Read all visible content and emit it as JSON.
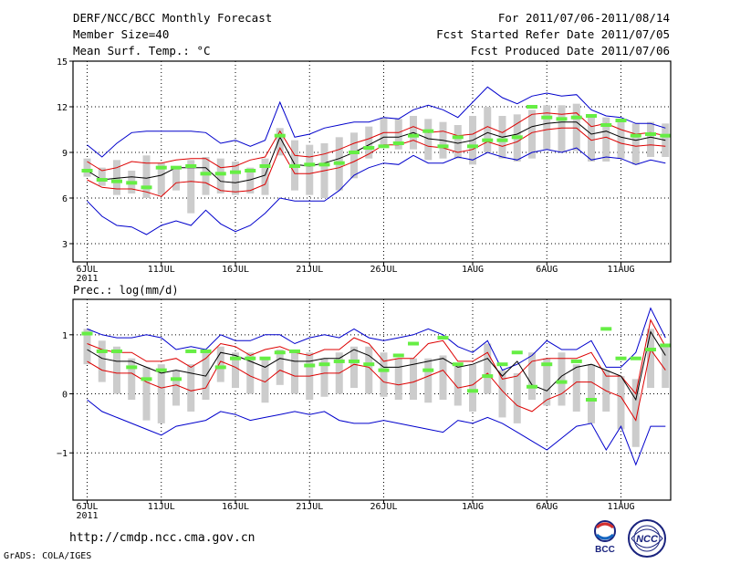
{
  "header": {
    "title": "DERF/NCC/BCC Monthly Forecast",
    "member_size": "Member Size=40",
    "variable": "Mean Surf. Temp.: °C",
    "period": "For 2011/07/06-2011/08/14",
    "fcst_started": "Fcst Started Refer Date 2011/07/05",
    "fcst_produced": "Fcst Produced Date 2011/07/06"
  },
  "footer": {
    "url": "http://cmdp.ncc.cma.gov.cn",
    "grads": "GrADS: COLA/IGES",
    "logo_bcc": "BCC",
    "logo_ncc": "NCC"
  },
  "colors": {
    "max_min": "#0000cc",
    "spread": "#dd0000",
    "mean": "#000000",
    "box": "#cccccc",
    "median": "#66ee44",
    "grid": "#000000"
  },
  "chart_data": [
    {
      "type": "line",
      "title": "",
      "ylabel": "Mean Surf. Temp.: °C",
      "x_labels": [
        "6JUL\n2011",
        "11JUL",
        "16JUL",
        "21JUL",
        "26JUL",
        "1AUG",
        "6AUG",
        "11AUG"
      ],
      "x_label_positions": [
        0,
        5,
        10,
        15,
        20,
        26,
        31,
        36
      ],
      "ylim": [
        1.8,
        15
      ],
      "yticks": [
        3,
        6,
        9,
        12,
        15
      ],
      "ytick_labels": [
        "3",
        "6",
        "9",
        "12",
        "15"
      ],
      "n_days": 40,
      "series": [
        {
          "name": "max",
          "values": [
            9.5,
            8.7,
            9.6,
            10.3,
            10.4,
            10.4,
            10.4,
            10.4,
            10.3,
            9.6,
            9.8,
            9.4,
            9.8,
            12.3,
            10.0,
            10.2,
            10.6,
            10.8,
            11.0,
            11.0,
            11.3,
            11.2,
            11.8,
            12.1,
            11.8,
            11.3,
            12.3,
            13.3,
            12.6,
            12.2,
            12.7,
            12.9,
            12.7,
            12.8,
            11.8,
            11.4,
            11.3,
            10.9,
            10.9,
            10.6
          ]
        },
        {
          "name": "upper",
          "values": [
            8.4,
            7.8,
            8.0,
            8.4,
            8.3,
            8.3,
            8.5,
            8.6,
            8.6,
            8.0,
            8.1,
            8.5,
            8.7,
            10.4,
            8.8,
            8.7,
            8.9,
            9.2,
            9.6,
            9.9,
            10.3,
            10.3,
            10.7,
            10.3,
            10.4,
            10.1,
            10.2,
            10.7,
            10.3,
            10.9,
            11.5,
            11.6,
            11.5,
            11.6,
            10.7,
            10.9,
            10.5,
            10.2,
            10.3,
            10.1
          ]
        },
        {
          "name": "mean",
          "values": [
            7.8,
            7.2,
            7.3,
            7.4,
            7.3,
            7.5,
            8.0,
            8.0,
            8.0,
            7.1,
            7.0,
            7.2,
            7.5,
            10.0,
            8.2,
            8.1,
            8.3,
            8.6,
            9.0,
            9.5,
            10.0,
            10.0,
            10.3,
            9.9,
            9.8,
            9.6,
            9.8,
            10.3,
            10.0,
            10.2,
            10.7,
            10.9,
            11.0,
            11.0,
            10.2,
            10.4,
            10.0,
            9.8,
            10.0,
            9.8
          ]
        },
        {
          "name": "lower",
          "values": [
            7.2,
            6.7,
            6.6,
            6.6,
            6.4,
            6.1,
            7.0,
            7.1,
            7.0,
            6.5,
            6.4,
            6.5,
            6.9,
            9.3,
            7.6,
            7.6,
            7.8,
            8.0,
            8.4,
            8.9,
            9.5,
            9.5,
            9.8,
            9.4,
            9.3,
            9.0,
            9.2,
            9.7,
            9.4,
            9.7,
            10.3,
            10.5,
            10.6,
            10.6,
            9.8,
            10.0,
            9.6,
            9.4,
            9.5,
            9.4
          ]
        },
        {
          "name": "min",
          "values": [
            5.8,
            4.8,
            4.2,
            4.1,
            3.6,
            4.2,
            4.5,
            4.2,
            5.2,
            4.3,
            3.8,
            4.2,
            5.0,
            6.0,
            5.8,
            5.8,
            5.8,
            6.5,
            7.5,
            8.0,
            8.3,
            8.2,
            8.8,
            8.3,
            8.3,
            8.7,
            8.5,
            9.0,
            8.7,
            8.5,
            9.0,
            9.2,
            9.0,
            9.3,
            8.5,
            8.7,
            8.6,
            8.2,
            8.5,
            8.3
          ]
        }
      ],
      "boxes": [
        [
          7.4,
          8.6
        ],
        [
          6.8,
          8.0
        ],
        [
          6.2,
          8.5
        ],
        [
          6.3,
          7.8
        ],
        [
          6.0,
          8.8
        ],
        [
          6.2,
          8.3
        ],
        [
          6.5,
          8.0
        ],
        [
          5.0,
          8.5
        ],
        [
          6.2,
          8.7
        ],
        [
          6.3,
          8.6
        ],
        [
          6.2,
          8.4
        ],
        [
          6.3,
          8.0
        ],
        [
          6.2,
          8.6
        ],
        [
          8.8,
          10.6
        ],
        [
          6.5,
          9.8
        ],
        [
          6.2,
          9.5
        ],
        [
          6.0,
          9.6
        ],
        [
          6.5,
          10.0
        ],
        [
          7.3,
          10.3
        ],
        [
          8.6,
          10.7
        ],
        [
          9.3,
          11.3
        ],
        [
          9.2,
          11.2
        ],
        [
          9.2,
          11.4
        ],
        [
          8.5,
          11.2
        ],
        [
          8.6,
          11.0
        ],
        [
          8.6,
          10.8
        ],
        [
          8.2,
          11.4
        ],
        [
          9.0,
          12.0
        ],
        [
          8.6,
          11.4
        ],
        [
          8.4,
          11.5
        ],
        [
          8.6,
          11.8
        ],
        [
          9.2,
          12.1
        ],
        [
          9.0,
          12.1
        ],
        [
          9.1,
          12.2
        ],
        [
          8.4,
          11.5
        ],
        [
          8.4,
          11.3
        ],
        [
          8.6,
          11.0
        ],
        [
          8.2,
          10.9
        ],
        [
          8.7,
          11.0
        ],
        [
          8.7,
          10.9
        ]
      ],
      "median": [
        7.8,
        7.2,
        7.1,
        7.0,
        6.7,
        8.0,
        8.0,
        8.1,
        7.6,
        7.6,
        7.7,
        7.8,
        8.1,
        10.1,
        8.1,
        8.2,
        8.2,
        8.3,
        9.0,
        9.3,
        9.4,
        9.6,
        10.1,
        10.4,
        9.4,
        10.0,
        9.4,
        9.8,
        9.8,
        10.0,
        12.0,
        11.3,
        11.2,
        11.3,
        11.4,
        10.8,
        11.1,
        10.1,
        10.2,
        10.1
      ]
    },
    {
      "type": "line",
      "title": "",
      "ylabel": "Prec.: log(mm/d)",
      "x_labels": [
        "6JUL\n2011",
        "11JUL",
        "16JUL",
        "21JUL",
        "26JUL",
        "1AUG",
        "6AUG",
        "11AUG"
      ],
      "x_label_positions": [
        0,
        5,
        10,
        15,
        20,
        26,
        31,
        36
      ],
      "ylim": [
        -1.8,
        1.6
      ],
      "yticks": [
        -1,
        0,
        1
      ],
      "ytick_labels": [
        "−1",
        "0",
        "1"
      ],
      "n_days": 40,
      "series": [
        {
          "name": "max",
          "values": [
            1.1,
            1.0,
            0.95,
            0.95,
            1.0,
            0.95,
            0.75,
            0.8,
            0.75,
            1.0,
            0.9,
            0.9,
            1.0,
            1.0,
            0.85,
            0.95,
            1.0,
            0.95,
            1.1,
            0.95,
            0.9,
            0.95,
            1.0,
            1.1,
            1.0,
            0.8,
            0.7,
            0.9,
            0.4,
            0.5,
            0.65,
            0.9,
            0.75,
            0.75,
            0.9,
            0.45,
            0.45,
            0.7,
            1.45,
            0.95
          ]
        },
        {
          "name": "upper",
          "values": [
            0.85,
            0.75,
            0.7,
            0.7,
            0.55,
            0.55,
            0.6,
            0.45,
            0.6,
            0.85,
            0.8,
            0.65,
            0.75,
            0.8,
            0.7,
            0.65,
            0.75,
            0.75,
            0.95,
            0.85,
            0.55,
            0.6,
            0.6,
            0.85,
            0.9,
            0.55,
            0.55,
            0.7,
            0.25,
            0.3,
            0.55,
            0.6,
            0.6,
            0.6,
            0.7,
            0.3,
            0.3,
            0.0,
            1.25,
            0.8
          ]
        },
        {
          "name": "mean",
          "values": [
            0.75,
            0.6,
            0.55,
            0.55,
            0.45,
            0.35,
            0.4,
            0.35,
            0.3,
            0.7,
            0.65,
            0.55,
            0.45,
            0.6,
            0.55,
            0.55,
            0.6,
            0.6,
            0.75,
            0.65,
            0.45,
            0.45,
            0.5,
            0.55,
            0.6,
            0.45,
            0.5,
            0.6,
            0.3,
            0.55,
            0.15,
            0.05,
            0.3,
            0.45,
            0.5,
            0.4,
            0.3,
            -0.1,
            1.05,
            0.65
          ]
        },
        {
          "name": "lower",
          "values": [
            0.55,
            0.4,
            0.35,
            0.35,
            0.2,
            0.1,
            0.15,
            0.05,
            0.1,
            0.55,
            0.45,
            0.3,
            0.2,
            0.4,
            0.3,
            0.3,
            0.35,
            0.35,
            0.5,
            0.45,
            0.2,
            0.15,
            0.2,
            0.3,
            0.4,
            0.1,
            0.15,
            0.35,
            0.05,
            -0.2,
            -0.3,
            -0.1,
            0.0,
            0.2,
            0.2,
            0.05,
            -0.05,
            -0.45,
            0.75,
            0.4
          ]
        },
        {
          "name": "min",
          "values": [
            -0.1,
            -0.3,
            -0.4,
            -0.5,
            -0.6,
            -0.7,
            -0.55,
            -0.5,
            -0.45,
            -0.3,
            -0.35,
            -0.45,
            -0.4,
            -0.35,
            -0.3,
            -0.35,
            -0.3,
            -0.45,
            -0.5,
            -0.5,
            -0.45,
            -0.5,
            -0.55,
            -0.6,
            -0.65,
            -0.45,
            -0.5,
            -0.4,
            -0.5,
            -0.65,
            -0.8,
            -0.95,
            -0.75,
            -0.55,
            -0.5,
            -0.95,
            -0.55,
            -1.2,
            -0.55,
            -0.55
          ]
        }
      ],
      "boxes": [
        [
          0.5,
          1.1
        ],
        [
          0.2,
          0.9
        ],
        [
          0.0,
          0.8
        ],
        [
          -0.1,
          0.6
        ],
        [
          -0.45,
          0.45
        ],
        [
          -0.5,
          0.5
        ],
        [
          -0.2,
          0.4
        ],
        [
          -0.3,
          0.5
        ],
        [
          -0.1,
          0.7
        ],
        [
          0.2,
          0.8
        ],
        [
          0.1,
          0.7
        ],
        [
          0.0,
          0.7
        ],
        [
          -0.15,
          0.6
        ],
        [
          0.15,
          0.75
        ],
        [
          0.0,
          0.7
        ],
        [
          -0.1,
          0.7
        ],
        [
          -0.05,
          0.6
        ],
        [
          0.0,
          0.7
        ],
        [
          0.1,
          0.8
        ],
        [
          0.0,
          0.8
        ],
        [
          -0.05,
          0.7
        ],
        [
          -0.1,
          0.6
        ],
        [
          -0.1,
          0.6
        ],
        [
          -0.15,
          0.6
        ],
        [
          -0.1,
          0.65
        ],
        [
          -0.2,
          0.5
        ],
        [
          -0.3,
          0.5
        ],
        [
          0.0,
          0.85
        ],
        [
          -0.4,
          0.4
        ],
        [
          -0.5,
          0.35
        ],
        [
          -0.1,
          0.7
        ],
        [
          -0.2,
          0.6
        ],
        [
          -0.2,
          0.7
        ],
        [
          -0.3,
          0.5
        ],
        [
          -0.5,
          0.5
        ],
        [
          -0.3,
          0.4
        ],
        [
          -0.6,
          0.3
        ],
        [
          -0.9,
          0.25
        ],
        [
          0.1,
          1.1
        ],
        [
          0.1,
          0.85
        ]
      ],
      "median": [
        1.02,
        0.72,
        0.72,
        0.45,
        0.25,
        0.4,
        0.25,
        0.72,
        0.72,
        0.45,
        0.6,
        0.6,
        0.6,
        0.7,
        0.72,
        0.48,
        0.5,
        0.55,
        0.55,
        0.5,
        0.4,
        0.65,
        0.85,
        0.4,
        0.95,
        0.5,
        0.05,
        0.3,
        0.5,
        0.7,
        0.12,
        0.5,
        0.2,
        0.55,
        -0.1,
        1.1,
        0.6,
        0.6,
        0.75,
        0.82
      ]
    }
  ]
}
